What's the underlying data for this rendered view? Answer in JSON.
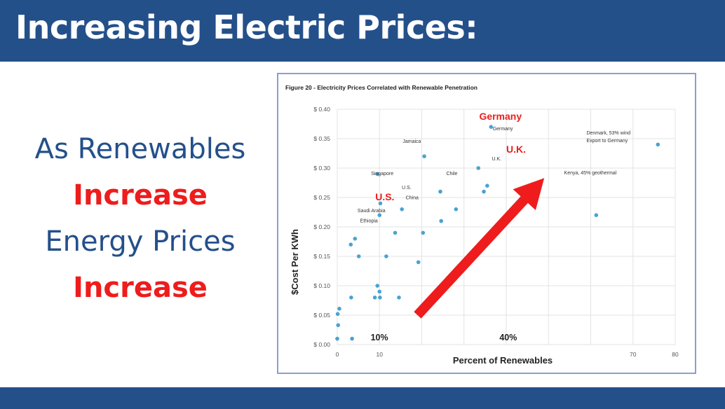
{
  "slide": {
    "title": "Increasing Electric Prices:",
    "left_lines": [
      "As Renewables",
      "Increase",
      "Energy Prices",
      "Increase"
    ]
  },
  "colors": {
    "bar": "#24508a",
    "accent_red": "#ee1c1c",
    "point": "#4aa3d0",
    "grid": "#e3e3e3"
  },
  "chart_data": {
    "type": "scatter",
    "title": "Figure 20 - Electricity Prices Correlated with Renewable Penetration",
    "xlabel": "Percent of Renewables",
    "ylabel": "$Cost Per KWh",
    "xlim": [
      0,
      80
    ],
    "ylim": [
      0,
      0.4
    ],
    "x_ticks": [
      0,
      10,
      70,
      80
    ],
    "y_ticks": [
      0,
      0.05,
      0.1,
      0.15,
      0.2,
      0.25,
      0.3,
      0.35,
      0.4
    ],
    "y_tick_labels": [
      "$ 0.00",
      "$ 0.05",
      "$ 0.10",
      "$ 0.15",
      "$ 0.20",
      "$ 0.25",
      "$ 0.30",
      "$ 0.35",
      "$ 0.40"
    ],
    "grid": true,
    "points": [
      {
        "x": 0,
        "y": 0.01
      },
      {
        "x": 0.2,
        "y": 0.033
      },
      {
        "x": 0.1,
        "y": 0.052
      },
      {
        "x": 0.5,
        "y": 0.061
      },
      {
        "x": 3.5,
        "y": 0.01
      },
      {
        "x": 3.3,
        "y": 0.08
      },
      {
        "x": 3.2,
        "y": 0.17
      },
      {
        "x": 4.2,
        "y": 0.18
      },
      {
        "x": 5.1,
        "y": 0.15
      },
      {
        "x": 8.9,
        "y": 0.08
      },
      {
        "x": 9.5,
        "y": 0.1
      },
      {
        "x": 10.0,
        "y": 0.09
      },
      {
        "x": 10.1,
        "y": 0.08
      },
      {
        "x": 9.5,
        "y": 0.29
      },
      {
        "x": 10.2,
        "y": 0.24
      },
      {
        "x": 10.0,
        "y": 0.22
      },
      {
        "x": 11.6,
        "y": 0.15
      },
      {
        "x": 13.7,
        "y": 0.19
      },
      {
        "x": 14.6,
        "y": 0.08
      },
      {
        "x": 15.3,
        "y": 0.23
      },
      {
        "x": 19.2,
        "y": 0.14
      },
      {
        "x": 20.3,
        "y": 0.19
      },
      {
        "x": 20.6,
        "y": 0.32
      },
      {
        "x": 24.6,
        "y": 0.21
      },
      {
        "x": 24.4,
        "y": 0.26
      },
      {
        "x": 28.1,
        "y": 0.23
      },
      {
        "x": 33.4,
        "y": 0.3
      },
      {
        "x": 34.7,
        "y": 0.26
      },
      {
        "x": 35.5,
        "y": 0.27
      },
      {
        "x": 36.4,
        "y": 0.37
      },
      {
        "x": 61.3,
        "y": 0.22
      },
      {
        "x": 75.9,
        "y": 0.34
      }
    ],
    "point_labels": [
      {
        "text": "Jamaica",
        "x": 15.5,
        "y": 0.343
      },
      {
        "text": "Singapore",
        "x": 8.0,
        "y": 0.288
      },
      {
        "text": "Chile",
        "x": 25.8,
        "y": 0.288
      },
      {
        "text": "U.S.",
        "x": 15.3,
        "y": 0.264
      },
      {
        "text": "China",
        "x": 16.2,
        "y": 0.247
      },
      {
        "text": "Saudi Arabia",
        "x": 4.8,
        "y": 0.225
      },
      {
        "text": "Ethiopia",
        "x": 5.4,
        "y": 0.208
      },
      {
        "text": "U.K.",
        "x": 36.6,
        "y": 0.313
      },
      {
        "text": "Germany",
        "x": 36.8,
        "y": 0.364
      },
      {
        "text": "Denmark, 53% wind",
        "x": 59.0,
        "y": 0.357
      },
      {
        "text": "Export to Germany",
        "x": 59.0,
        "y": 0.344
      },
      {
        "text": "Kenya, 45% geothermal",
        "x": 53.7,
        "y": 0.289
      }
    ],
    "annotations": [
      {
        "text": "Germany",
        "x": 33.6,
        "y": 0.382
      },
      {
        "text": "U.K.",
        "x": 40.0,
        "y": 0.326
      },
      {
        "text": "U.S.",
        "x": 9.0,
        "y": 0.245
      },
      {
        "text": "10%",
        "x": 7.9,
        "y": 0.007
      },
      {
        "text": "40%",
        "x": 38.4,
        "y": 0.007
      }
    ],
    "arrow": {
      "from": {
        "x": 19.0,
        "y": 0.05
      },
      "to": {
        "x": 49.0,
        "y": 0.283
      }
    }
  }
}
